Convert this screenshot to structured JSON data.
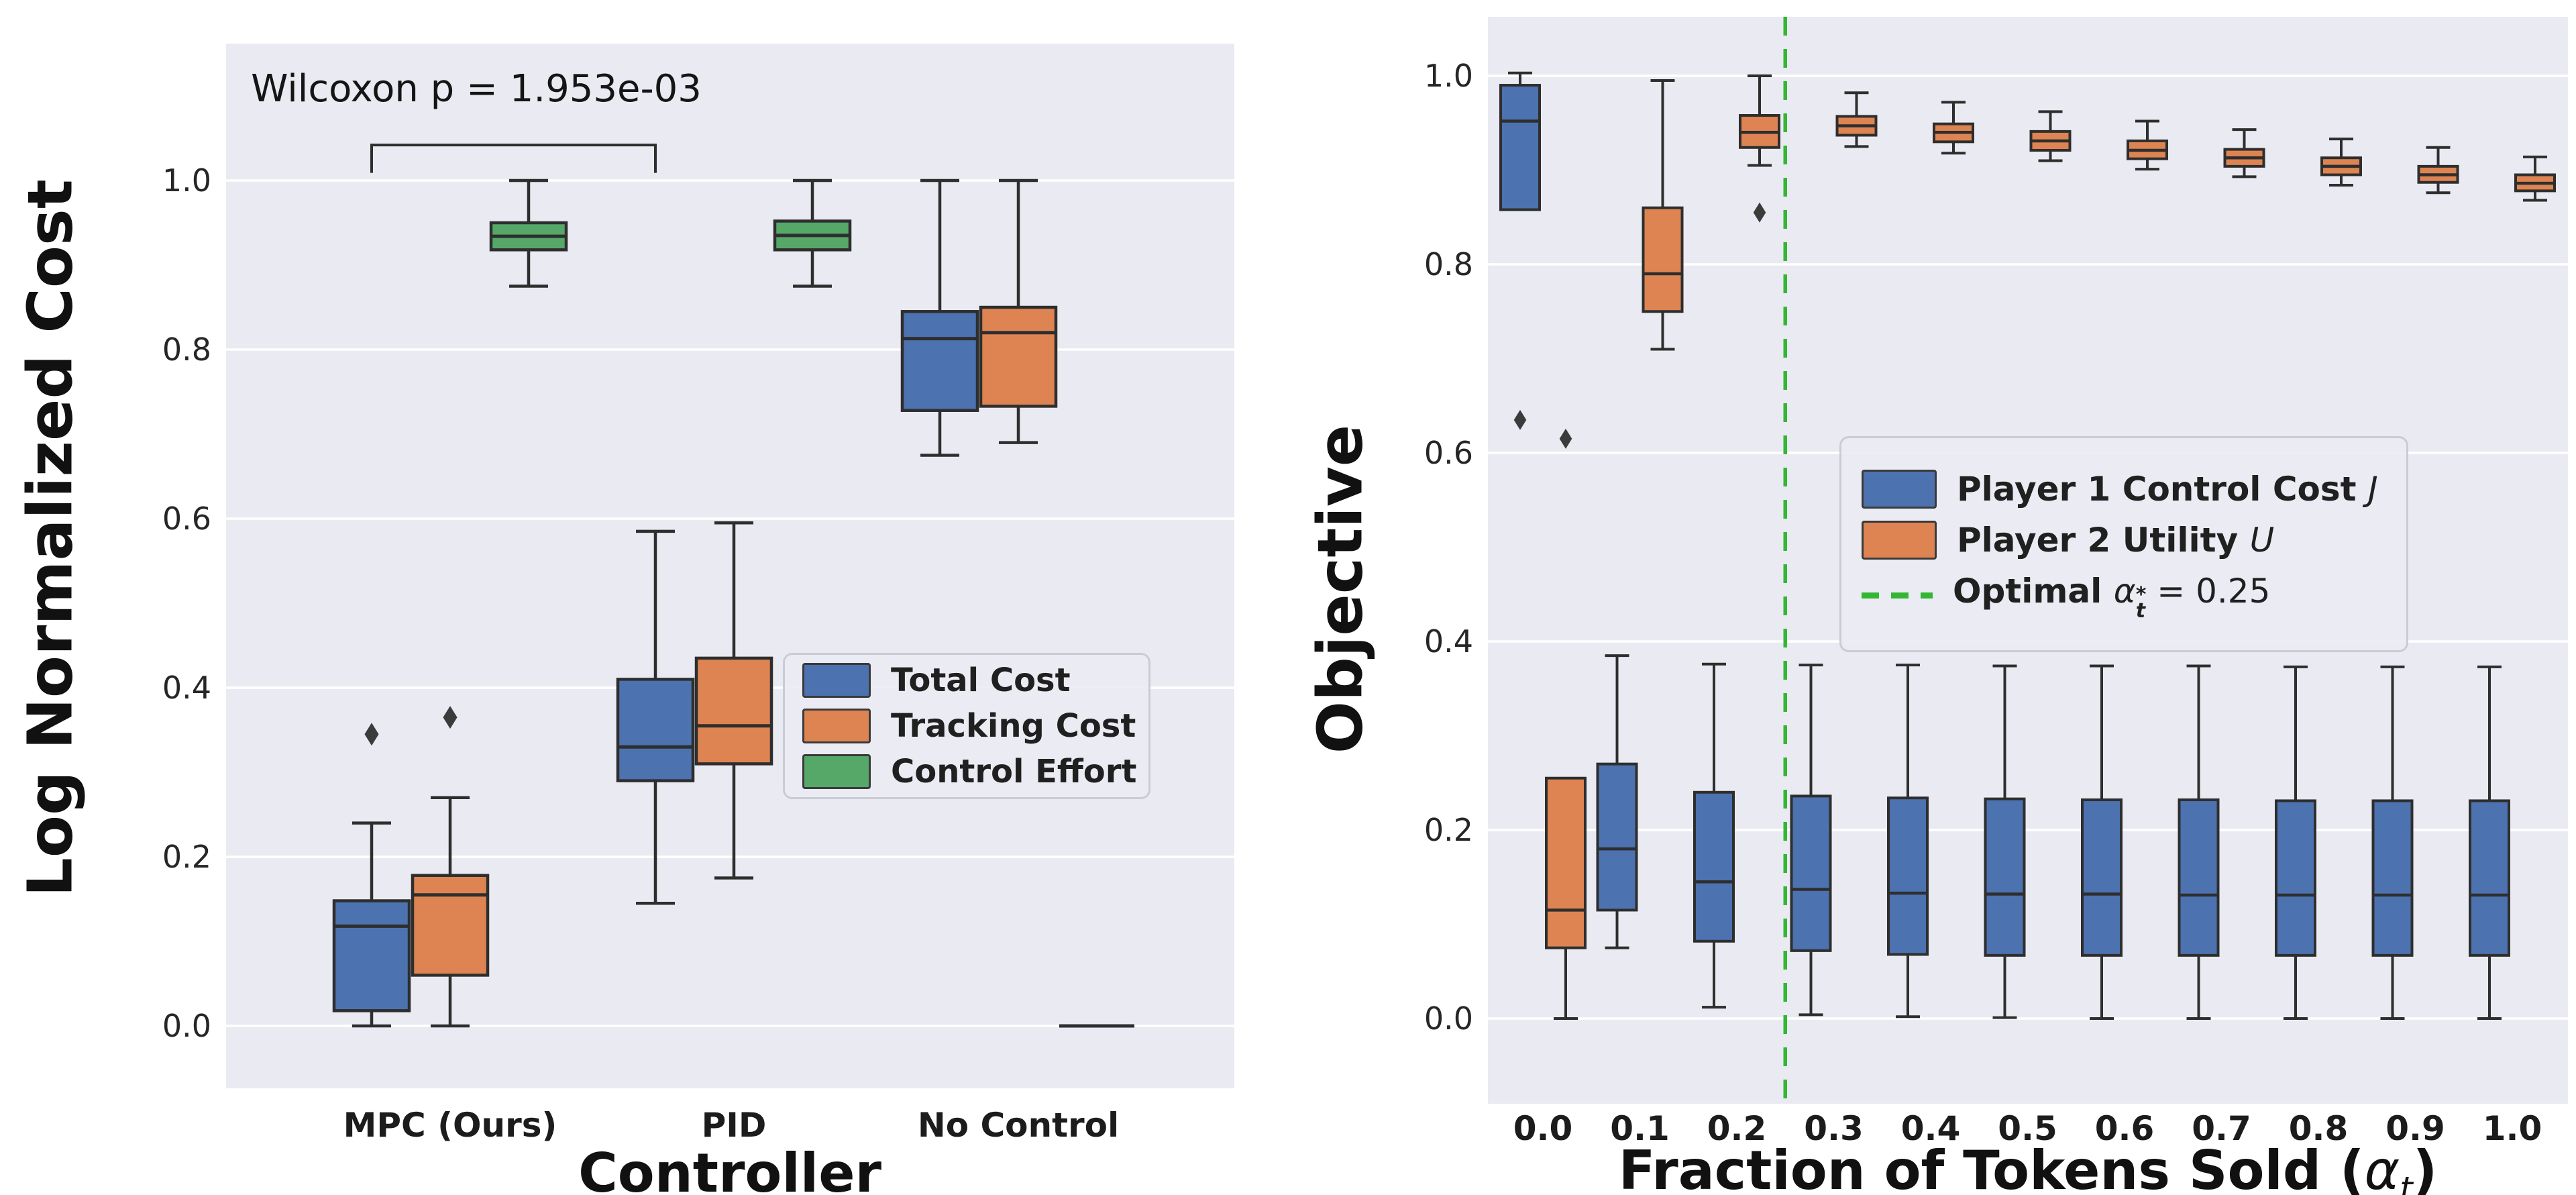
{
  "figure": {
    "background": "#FFFFFF",
    "plot_background": "#EAEAF2",
    "grid_color": "#FFFFFF",
    "box_edge_color": "#2E2E2E",
    "flier_color": "#3B3B3B",
    "tick_color": "#262626",
    "legend_bg": "rgba(234,234,242,0.88)",
    "legend_border": "#CBCBD6"
  },
  "chart_data": [
    {
      "type": "box",
      "panel": "left",
      "ylabel": "Log Normalized Cost",
      "xlabel": "Controller",
      "categories": [
        "MPC (Ours)",
        "PID",
        "No Control"
      ],
      "yticks": [
        0.0,
        0.2,
        0.4,
        0.6,
        0.8,
        1.0
      ],
      "ytick_labels": [
        "0.0",
        "0.2",
        "0.4",
        "0.6",
        "0.8",
        "1.0"
      ],
      "ylim": [
        -0.073,
        1.16
      ],
      "grid": true,
      "legend_position": "center-right",
      "annotation": {
        "text": "Wilcoxon p = 1.953e-03",
        "bracket": {
          "from": "MPC (Ours)",
          "to": "PID",
          "series": "Total Cost",
          "y": 1.042,
          "drop": 0.033
        }
      },
      "series": [
        {
          "name": "Total Cost",
          "color": "#4C72B0",
          "boxes": [
            {
              "whislo": 0.0,
              "q1": 0.018,
              "med": 0.118,
              "q3": 0.148,
              "whishi": 0.24,
              "fliers": [
                0.345
              ]
            },
            {
              "whislo": 0.145,
              "q1": 0.29,
              "med": 0.33,
              "q3": 0.41,
              "whishi": 0.585,
              "fliers": []
            },
            {
              "whislo": 0.675,
              "q1": 0.728,
              "med": 0.813,
              "q3": 0.845,
              "whishi": 1.0,
              "fliers": []
            }
          ]
        },
        {
          "name": "Tracking Cost",
          "color": "#DD8452",
          "boxes": [
            {
              "whislo": 0.0,
              "q1": 0.06,
              "med": 0.155,
              "q3": 0.178,
              "whishi": 0.27,
              "fliers": [
                0.365
              ]
            },
            {
              "whislo": 0.175,
              "q1": 0.31,
              "med": 0.355,
              "q3": 0.435,
              "whishi": 0.595,
              "fliers": []
            },
            {
              "whislo": 0.69,
              "q1": 0.733,
              "med": 0.82,
              "q3": 0.85,
              "whishi": 1.0,
              "fliers": []
            }
          ]
        },
        {
          "name": "Control Effort",
          "color": "#55A868",
          "boxes": [
            {
              "whislo": 0.875,
              "q1": 0.918,
              "med": 0.934,
              "q3": 0.95,
              "whishi": 1.0,
              "fliers": []
            },
            {
              "whislo": 0.875,
              "q1": 0.918,
              "med": 0.935,
              "q3": 0.952,
              "whishi": 1.0,
              "fliers": []
            },
            {
              "flat": 0.0
            }
          ]
        }
      ]
    },
    {
      "type": "box",
      "panel": "right",
      "ylabel": "Objective",
      "xlabel": "Fraction of Tokens Sold (αt)",
      "xlabel_parts": {
        "prefix": "Fraction of Tokens Sold (",
        "var": "α",
        "sub": "t",
        "suffix": ")"
      },
      "categories": [
        "0.0",
        "0.1",
        "0.2",
        "0.3",
        "0.4",
        "0.5",
        "0.6",
        "0.7",
        "0.8",
        "0.9",
        "1.0"
      ],
      "yticks": [
        0.0,
        0.2,
        0.4,
        0.6,
        0.8,
        1.0
      ],
      "ytick_labels": [
        "0.0",
        "0.2",
        "0.4",
        "0.6",
        "0.8",
        "1.0"
      ],
      "ylim": [
        -0.09,
        1.063
      ],
      "grid": true,
      "legend_position": "center-right",
      "optimal_line": {
        "x": 0.25,
        "style": "dashed",
        "color": "#33B733",
        "label": "Optimal αt* = 0.25",
        "parts": {
          "prefix": "Optimal ",
          "var": "α",
          "sup": "*",
          "sub": "t",
          "value": " = 0.25"
        }
      },
      "series": [
        {
          "name": "Player 1 Control Cost J",
          "label_text": "Player 1 Control Cost ",
          "label_math": "J",
          "color": "#4C72B0",
          "boxes": [
            {
              "whislo": 0.858,
              "q1": 0.858,
              "med": 0.952,
              "q3": 0.99,
              "whishi": 1.003,
              "fliers": [
                0.635
              ]
            },
            {
              "whislo": 0.075,
              "q1": 0.115,
              "med": 0.18,
              "q3": 0.27,
              "whishi": 0.385,
              "fliers": []
            },
            {
              "whislo": 0.012,
              "q1": 0.082,
              "med": 0.145,
              "q3": 0.24,
              "whishi": 0.376,
              "fliers": []
            },
            {
              "whislo": 0.004,
              "q1": 0.072,
              "med": 0.137,
              "q3": 0.236,
              "whishi": 0.375,
              "fliers": []
            },
            {
              "whislo": 0.002,
              "q1": 0.068,
              "med": 0.133,
              "q3": 0.234,
              "whishi": 0.375,
              "fliers": []
            },
            {
              "whislo": 0.001,
              "q1": 0.067,
              "med": 0.132,
              "q3": 0.233,
              "whishi": 0.374,
              "fliers": []
            },
            {
              "whislo": 0.0,
              "q1": 0.067,
              "med": 0.132,
              "q3": 0.232,
              "whishi": 0.374,
              "fliers": []
            },
            {
              "whislo": 0.0,
              "q1": 0.067,
              "med": 0.131,
              "q3": 0.232,
              "whishi": 0.374,
              "fliers": []
            },
            {
              "whislo": 0.0,
              "q1": 0.067,
              "med": 0.131,
              "q3": 0.231,
              "whishi": 0.373,
              "fliers": []
            },
            {
              "whislo": 0.0,
              "q1": 0.067,
              "med": 0.131,
              "q3": 0.231,
              "whishi": 0.373,
              "fliers": []
            },
            {
              "whislo": 0.0,
              "q1": 0.067,
              "med": 0.131,
              "q3": 0.231,
              "whishi": 0.373,
              "fliers": []
            }
          ]
        },
        {
          "name": "Player 2 Utility U",
          "label_text": "Player 2 Utility ",
          "label_math": "U",
          "color": "#DD8452",
          "boxes": [
            {
              "whislo": 0.0,
              "q1": 0.075,
              "med": 0.115,
              "q3": 0.255,
              "whishi": 0.255,
              "fliers": [
                0.615
              ]
            },
            {
              "whislo": 0.71,
              "q1": 0.75,
              "med": 0.79,
              "q3": 0.86,
              "whishi": 0.995,
              "fliers": []
            },
            {
              "whislo": 0.905,
              "q1": 0.924,
              "med": 0.94,
              "q3": 0.958,
              "whishi": 1.0,
              "fliers": [
                0.855
              ]
            },
            {
              "whislo": 0.925,
              "q1": 0.937,
              "med": 0.947,
              "q3": 0.957,
              "whishi": 0.982,
              "fliers": []
            },
            {
              "whislo": 0.918,
              "q1": 0.93,
              "med": 0.94,
              "q3": 0.949,
              "whishi": 0.972,
              "fliers": []
            },
            {
              "whislo": 0.91,
              "q1": 0.921,
              "med": 0.931,
              "q3": 0.941,
              "whishi": 0.962,
              "fliers": []
            },
            {
              "whislo": 0.901,
              "q1": 0.912,
              "med": 0.921,
              "q3": 0.931,
              "whishi": 0.952,
              "fliers": []
            },
            {
              "whislo": 0.893,
              "q1": 0.904,
              "med": 0.913,
              "q3": 0.922,
              "whishi": 0.943,
              "fliers": []
            },
            {
              "whislo": 0.884,
              "q1": 0.895,
              "med": 0.904,
              "q3": 0.913,
              "whishi": 0.933,
              "fliers": []
            },
            {
              "whislo": 0.876,
              "q1": 0.887,
              "med": 0.895,
              "q3": 0.904,
              "whishi": 0.924,
              "fliers": []
            },
            {
              "whislo": 0.868,
              "q1": 0.878,
              "med": 0.886,
              "q3": 0.895,
              "whishi": 0.914,
              "fliers": []
            }
          ]
        }
      ]
    }
  ]
}
